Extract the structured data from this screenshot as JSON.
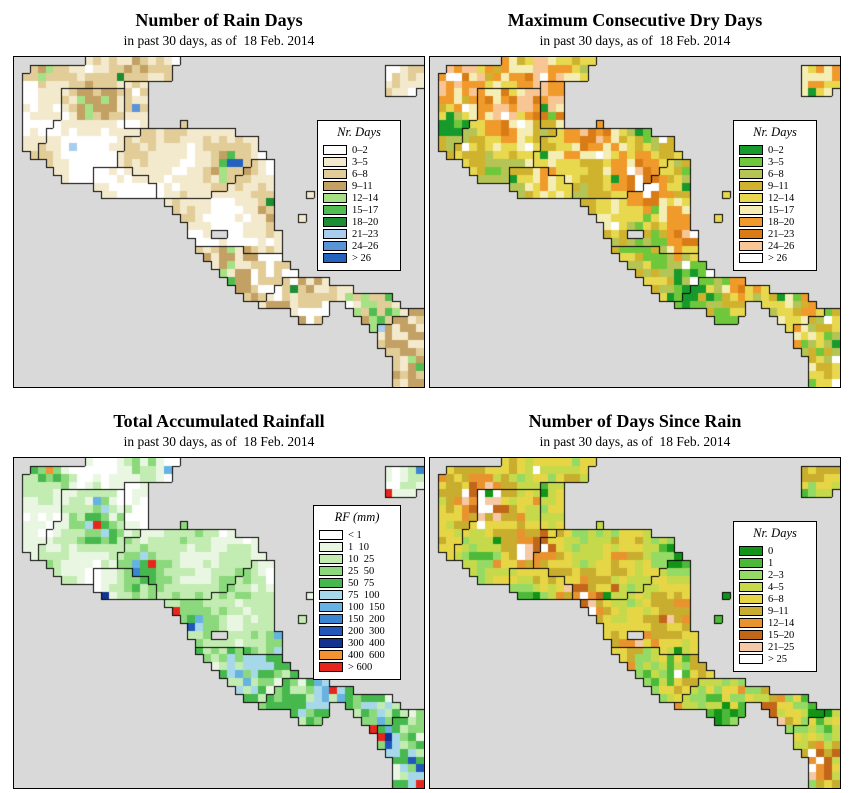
{
  "figure": {
    "sea_color": "#d9d9d9",
    "map": {
      "cols": 52,
      "rows": 42,
      "mask": [
        ".........MMMMMMMMMMMM...............................",
        "..MMMMMMMMMMMMMMMMMM...........................JJJJJ",
        ".MMMMMMMMMMMMMMMMMMM...........................JJJJJ",
        ".MMMMMMMMMMMMMBBB..............................JJJJJ",
        ".MMMMMGGGGGGGGBBB..............................JJJJ.",
        ".MMMMMGGGGGGGGBBB...................................",
        ".MMMMMGGGGGGGGBBB...................................",
        ".MMMMMGGGGGGGGBBB...................................",
        ".MMMMGGGGGGGGGBBB....A..............................",
        ".MMMGGGGGGGGGGGGHHHHHHHHHHHH........................",
        ".MMMGGGGGGGGGGHHHHHHHHHHHHHHHHH.....................",
        ".MMGGGGGGGGGGGHHHHHHHHHHHHHHHHH.....................",
        "..MGGGGGGGGGGHHHHHHHHHHHHHHHHHHH....................",
        "....GGGGGGGGGHHHHHHHHHHHHHHHHHNNN...................",
        ".....GGGGGSSSSSHHHHHHHHHHHHHHNNNN...................",
        "......GGGGSSSSSSSHHHHHHHHHHHNNNNN...................",
        "..........SSSSSSSSHHHHHHHHHNNNNNN...................",
        "...........SSSSSSSHHHHHHHNNNNNNNN....A..............",
        "...................NNNNNNNNNNNNNN...................",
        "....................NNNNNNNNNNNNN...................",
        ".....................NNNNNNNNNNNN...A...............",
        "......................NNNNNNNNNNN...................",
        "......................NNN..NNNNNNN..................",
        ".......................NNNNNNNNNNN..................",
        ".......................CCCCCCNNNNN..................",
        "........................CCCCCCCCCC..................",
        ".........................CCCCCCCCCC.................",
        "..........................CCCCCCCCCC................",
        "...........................CCCCCCCPPPPPP............",
        "............................CCCCCPPPPPPPPPP.........",
        ".............................CCCPPPPPPPPPPPPPPPP....",
        "...............................PPPPPPPPP..PPPPPPP...",
        "...................................PPPPP...PPPPPPPOO",
        "....................................PPP.....PPPPOOOO",
        ".............................................POOOOOO",
        "..............................................OOOOOO",
        "..............................................OOOOOO",
        "...............................................OOOOO",
        "................................................OOOO",
        "................................................OOOO",
        "................................................OOOO",
        "................................................OOOO"
      ]
    },
    "panels": [
      {
        "id": "rain-days",
        "title": "Number of Rain Days",
        "subtitle": "in past 30 days, as of  18 Feb. 2014",
        "legend_title": "Nr. Days",
        "legend": [
          {
            "label": "0–2",
            "color": "#ffffff"
          },
          {
            "label": "3–5",
            "color": "#f3e9cd"
          },
          {
            "label": "6–8",
            "color": "#e2cd98"
          },
          {
            "label": "9–11",
            "color": "#c3a164"
          },
          {
            "label": "12–14",
            "color": "#a7e186"
          },
          {
            "label": "15–17",
            "color": "#50bd50"
          },
          {
            "label": "18–20",
            "color": "#1b8d33"
          },
          {
            "label": "21–23",
            "color": "#a9cdee"
          },
          {
            "label": "24–26",
            "color": "#5a94d8"
          },
          {
            "label": "> 26",
            "color": "#2363be"
          }
        ],
        "render": {
          "seed": 7,
          "weights": [
            0.38,
            0.28,
            0.17,
            0.09,
            0.04,
            0.012,
            0.008,
            0.004,
            0.004,
            0.01
          ],
          "north_shift": 1,
          "south_shift": 2,
          "outliers": {
            "p": 0.015,
            "idx": [
              4,
              5,
              6,
              7,
              8,
              9
            ]
          }
        }
      },
      {
        "id": "dry-days",
        "title": "Maximum Consecutive Dry Days",
        "subtitle": "in past 30 days, as of  18 Feb. 2014",
        "legend_title": "Nr. Days",
        "legend": [
          {
            "label": "0–2",
            "color": "#179a2c"
          },
          {
            "label": "3–5",
            "color": "#6fc83c"
          },
          {
            "label": "6–8",
            "color": "#b4c455"
          },
          {
            "label": "9–11",
            "color": "#cfb32e"
          },
          {
            "label": "12–14",
            "color": "#e7d84e"
          },
          {
            "label": "15–17",
            "color": "#f5eeb4"
          },
          {
            "label": "18–20",
            "color": "#ef9a2a"
          },
          {
            "label": "21–23",
            "color": "#d97c16"
          },
          {
            "label": "24–26",
            "color": "#f7c694"
          },
          {
            "label": "> 26",
            "color": "#ffffff"
          }
        ],
        "render": {
          "seed": 13,
          "weights": [
            0.05,
            0.06,
            0.13,
            0.16,
            0.15,
            0.09,
            0.2,
            0.08,
            0.04,
            0.04
          ],
          "north_shift": 2,
          "south_shift": -2,
          "outliers": {
            "p": 0.05,
            "idx": [
              0,
              1,
              9,
              9
            ]
          }
        }
      },
      {
        "id": "rainfall",
        "title": "Total Accumulated Rainfall",
        "subtitle": "in past 30 days, as of  18 Feb. 2014",
        "legend_title": "RF (mm)",
        "legend": [
          {
            "label": "< 1",
            "color": "#ffffff"
          },
          {
            "label": "1  10",
            "color": "#e9f7e2"
          },
          {
            "label": "10  25",
            "color": "#c2ecb2"
          },
          {
            "label": "25  50",
            "color": "#8cd87c"
          },
          {
            "label": "50  75",
            "color": "#47b84e"
          },
          {
            "label": "75  100",
            "color": "#a6d8e9"
          },
          {
            "label": "100  150",
            "color": "#66b2e2"
          },
          {
            "label": "150  200",
            "color": "#3a86d2"
          },
          {
            "label": "200  300",
            "color": "#2156ba"
          },
          {
            "label": "300  400",
            "color": "#12338f"
          },
          {
            "label": "400  600",
            "color": "#f29231"
          },
          {
            "label": "> 600",
            "color": "#e8251c"
          }
        ],
        "render": {
          "seed": 21,
          "weights": [
            0.18,
            0.22,
            0.24,
            0.18,
            0.08,
            0.04,
            0.025,
            0.015,
            0.008,
            0.004,
            0.002,
            0.002
          ],
          "north_shift": -1,
          "south_shift": 2,
          "outliers": {
            "p": 0.015,
            "idx": [
              6,
              7,
              8,
              9,
              10,
              11
            ]
          }
        }
      },
      {
        "id": "days-since-rain",
        "title": "Number of Days Since Rain",
        "subtitle": "in past 30 days, as of  18 Feb. 2014",
        "legend_title": "Nr. Days",
        "legend": [
          {
            "label": "0",
            "color": "#119418"
          },
          {
            "label": "1",
            "color": "#4cba38"
          },
          {
            "label": "2–3",
            "color": "#95da64"
          },
          {
            "label": "4–5",
            "color": "#c6d94b"
          },
          {
            "label": "6–8",
            "color": "#e6d645"
          },
          {
            "label": "9–11",
            "color": "#c9ad2e"
          },
          {
            "label": "12–14",
            "color": "#e9932f"
          },
          {
            "label": "15–20",
            "color": "#c2671a"
          },
          {
            "label": "21–25",
            "color": "#f5c9a5"
          },
          {
            "label": "> 25",
            "color": "#ffffff"
          }
        ],
        "render": {
          "seed": 29,
          "weights": [
            0.07,
            0.09,
            0.13,
            0.16,
            0.18,
            0.12,
            0.08,
            0.04,
            0.05,
            0.08
          ],
          "north_shift": 1,
          "south_shift": -2,
          "outliers": {
            "p": 0.035,
            "idx": [
              0,
              6,
              7,
              9
            ]
          }
        }
      }
    ]
  }
}
